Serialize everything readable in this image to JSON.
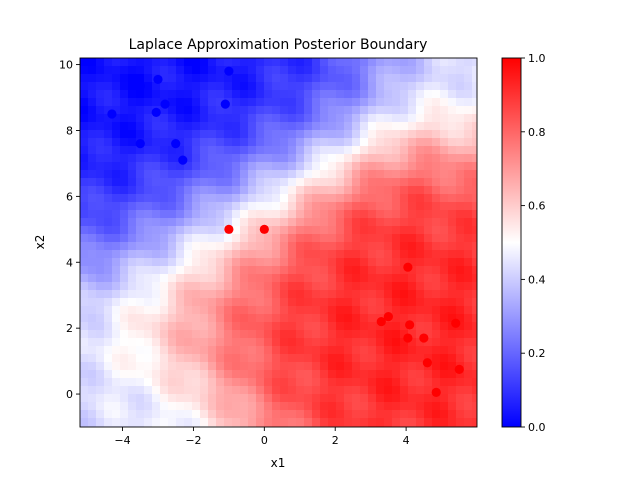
{
  "chart_data": {
    "type": "scatter",
    "title": "Laplace Approximation Posterior Boundary",
    "xlabel": "x1",
    "ylabel": "x2",
    "xlim": [
      -5.2,
      6.0
    ],
    "ylim": [
      -1.0,
      10.2
    ],
    "xticks": [
      -4,
      -2,
      0,
      2,
      4
    ],
    "yticks": [
      0,
      2,
      4,
      6,
      8,
      10
    ],
    "grid": false,
    "background": "contour of predicted probability (blue = low, red = high)",
    "series": [
      {
        "color": "#0000ff",
        "points": [
          [
            -4.3,
            8.5
          ],
          [
            -3.5,
            9.35
          ],
          [
            -3.0,
            9.55
          ],
          [
            -2.8,
            8.8
          ],
          [
            -3.05,
            8.55
          ],
          [
            -1.0,
            9.8
          ],
          [
            -1.1,
            8.8
          ],
          [
            -3.5,
            7.6
          ],
          [
            -2.5,
            7.6
          ],
          [
            -2.3,
            7.1
          ]
        ]
      },
      {
        "color": "#ff0000",
        "points": [
          [
            -1.0,
            5.0
          ],
          [
            0.0,
            5.0
          ],
          [
            4.05,
            3.85
          ],
          [
            3.3,
            2.2
          ],
          [
            3.5,
            2.35
          ],
          [
            4.1,
            2.1
          ],
          [
            4.05,
            1.7
          ],
          [
            4.5,
            1.7
          ],
          [
            5.4,
            2.15
          ],
          [
            4.6,
            0.95
          ],
          [
            5.5,
            0.75
          ],
          [
            4.85,
            0.05
          ]
        ]
      }
    ],
    "colorbar": {
      "min": 0.0,
      "max": 1.0,
      "ticks": [
        "0.0",
        "0.2",
        "0.4",
        "0.6",
        "0.8",
        "1.0"
      ],
      "colors": {
        "low": "#0000ff",
        "mid": "#ffffff",
        "high": "#ff0000"
      }
    }
  }
}
